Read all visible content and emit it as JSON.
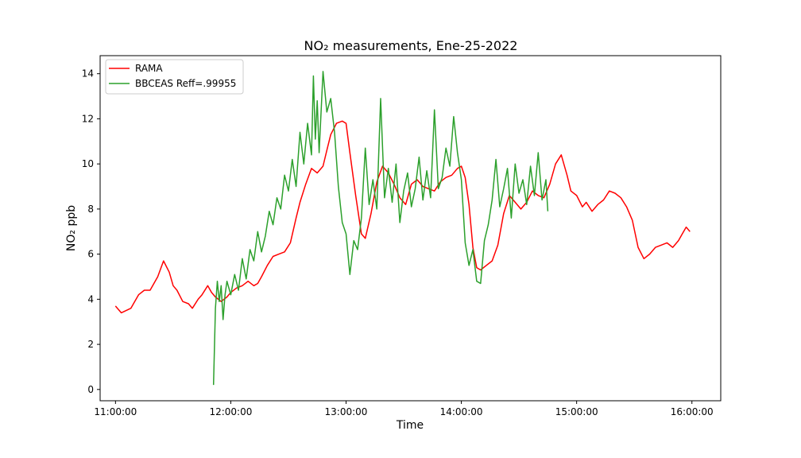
{
  "chart_data": {
    "type": "line",
    "title": "NO₂ measurements, Ene-25-2022",
    "xlabel": "Time",
    "ylabel": "NO₂ ppb",
    "x_ticks": [
      "11:00:00",
      "12:00:00",
      "13:00:00",
      "14:00:00",
      "15:00:00",
      "16:00:00"
    ],
    "y_ticks": [
      "0",
      "2",
      "4",
      "6",
      "8",
      "10",
      "12",
      "14"
    ],
    "xlim": [
      "10:52:00",
      "16:15:00"
    ],
    "ylim": [
      -0.5,
      14.8
    ],
    "grid": false,
    "legend_position": "top-left",
    "series": [
      {
        "name": "RAMA",
        "color": "#ff0000",
        "x": [
          "11:00",
          "11:03",
          "11:08",
          "11:12",
          "11:15",
          "11:18",
          "11:22",
          "11:25",
          "11:28",
          "11:30",
          "11:32",
          "11:35",
          "11:38",
          "11:40",
          "11:43",
          "11:45",
          "11:48",
          "11:50",
          "11:52",
          "11:55",
          "11:58",
          "12:00",
          "12:03",
          "12:06",
          "12:09",
          "12:12",
          "12:14",
          "12:16",
          "12:19",
          "12:22",
          "12:25",
          "12:28",
          "12:31",
          "12:34",
          "12:36",
          "12:39",
          "12:42",
          "12:45",
          "12:48",
          "12:50",
          "12:52",
          "12:55",
          "12:58",
          "13:00",
          "13:02",
          "13:05",
          "13:08",
          "13:10",
          "13:13",
          "13:16",
          "13:19",
          "13:22",
          "13:25",
          "13:28",
          "13:31",
          "13:34",
          "13:37",
          "13:40",
          "13:43",
          "13:46",
          "13:49",
          "13:52",
          "13:55",
          "13:58",
          "14:00",
          "14:02",
          "14:04",
          "14:06",
          "14:08",
          "14:10",
          "14:13",
          "14:16",
          "14:19",
          "14:22",
          "14:25",
          "14:28",
          "14:31",
          "14:34",
          "14:37",
          "14:40",
          "14:43",
          "14:46",
          "14:49",
          "14:52",
          "14:55",
          "14:57",
          "15:00",
          "15:03",
          "15:05",
          "15:08",
          "15:11",
          "15:14",
          "15:17",
          "15:20",
          "15:23",
          "15:26",
          "15:29",
          "15:32",
          "15:35",
          "15:38",
          "15:41",
          "15:44",
          "15:47",
          "15:50",
          "15:53",
          "15:55",
          "15:57",
          "15:59"
        ],
        "values": [
          3.7,
          3.4,
          3.6,
          4.2,
          4.4,
          4.4,
          5.0,
          5.7,
          5.2,
          4.6,
          4.4,
          3.9,
          3.8,
          3.6,
          4.0,
          4.2,
          4.6,
          4.3,
          4.1,
          3.9,
          4.1,
          4.3,
          4.5,
          4.6,
          4.8,
          4.6,
          4.7,
          5.0,
          5.5,
          5.9,
          6.0,
          6.1,
          6.5,
          7.6,
          8.3,
          9.1,
          9.8,
          9.6,
          9.9,
          10.6,
          11.3,
          11.8,
          11.9,
          11.8,
          10.5,
          8.6,
          6.9,
          6.7,
          7.8,
          9.2,
          9.9,
          9.6,
          9.1,
          8.5,
          8.2,
          9.1,
          9.3,
          9.0,
          8.9,
          8.8,
          9.2,
          9.4,
          9.5,
          9.8,
          9.9,
          9.4,
          8.2,
          6.3,
          5.4,
          5.3,
          5.5,
          5.7,
          6.4,
          7.8,
          8.6,
          8.3,
          8.0,
          8.3,
          8.8,
          8.6,
          8.5,
          9.1,
          10.0,
          10.4,
          9.5,
          8.8,
          8.6,
          8.1,
          8.3,
          7.9,
          8.2,
          8.4,
          8.8,
          8.7,
          8.5,
          8.1,
          7.5,
          6.3,
          5.8,
          6.0,
          6.3,
          6.4,
          6.5,
          6.3,
          6.6,
          6.9,
          7.2,
          7.0
        ]
      },
      {
        "name": "BBCEAS Reff=.99955",
        "color": "#2ca02c",
        "x": [
          "11:51",
          "11:52",
          "11:53",
          "11:54",
          "11:55",
          "11:56",
          "11:57",
          "11:58",
          "11:59",
          "12:00",
          "12:02",
          "12:04",
          "12:06",
          "12:08",
          "12:10",
          "12:12",
          "12:14",
          "12:16",
          "12:18",
          "12:20",
          "12:22",
          "12:24",
          "12:26",
          "12:28",
          "12:30",
          "12:32",
          "12:34",
          "12:36",
          "12:38",
          "12:40",
          "12:42",
          "12:43",
          "12:44",
          "12:45",
          "12:46",
          "12:48",
          "12:50",
          "12:52",
          "12:54",
          "12:56",
          "12:58",
          "13:00",
          "13:02",
          "13:04",
          "13:06",
          "13:08",
          "13:10",
          "13:12",
          "13:14",
          "13:16",
          "13:18",
          "13:20",
          "13:22",
          "13:24",
          "13:26",
          "13:28",
          "13:30",
          "13:32",
          "13:34",
          "13:36",
          "13:38",
          "13:40",
          "13:42",
          "13:44",
          "13:46",
          "13:48",
          "13:50",
          "13:52",
          "13:54",
          "13:56",
          "13:58",
          "14:00",
          "14:02",
          "14:04",
          "14:06",
          "14:08",
          "14:10",
          "14:12",
          "14:14",
          "14:16",
          "14:18",
          "14:20",
          "14:22",
          "14:24",
          "14:26",
          "14:28",
          "14:30",
          "14:32",
          "14:34",
          "14:36",
          "14:38",
          "14:40",
          "14:42",
          "14:44",
          "14:45"
        ],
        "values": [
          0.2,
          3.6,
          4.8,
          3.9,
          4.6,
          3.1,
          4.2,
          4.8,
          4.5,
          4.2,
          5.1,
          4.4,
          5.8,
          4.9,
          6.2,
          5.7,
          7.0,
          6.1,
          6.8,
          7.9,
          7.3,
          8.5,
          8.0,
          9.5,
          8.8,
          10.2,
          9.0,
          11.4,
          10.0,
          11.8,
          10.4,
          13.9,
          11.1,
          12.8,
          10.5,
          14.1,
          12.3,
          12.9,
          11.4,
          9.0,
          7.4,
          6.9,
          5.1,
          6.6,
          6.2,
          7.6,
          10.7,
          8.2,
          9.3,
          8.0,
          12.9,
          8.5,
          9.8,
          8.3,
          10.0,
          7.4,
          8.8,
          9.6,
          8.1,
          8.9,
          10.3,
          8.4,
          9.7,
          8.5,
          12.4,
          8.9,
          9.4,
          10.7,
          9.9,
          12.1,
          10.5,
          9.3,
          6.5,
          5.5,
          6.2,
          4.8,
          4.7,
          6.6,
          7.3,
          8.4,
          10.2,
          8.1,
          8.9,
          9.8,
          7.6,
          10.0,
          8.7,
          9.3,
          8.2,
          9.9,
          8.6,
          10.5,
          8.4,
          9.3,
          7.9
        ]
      }
    ]
  }
}
